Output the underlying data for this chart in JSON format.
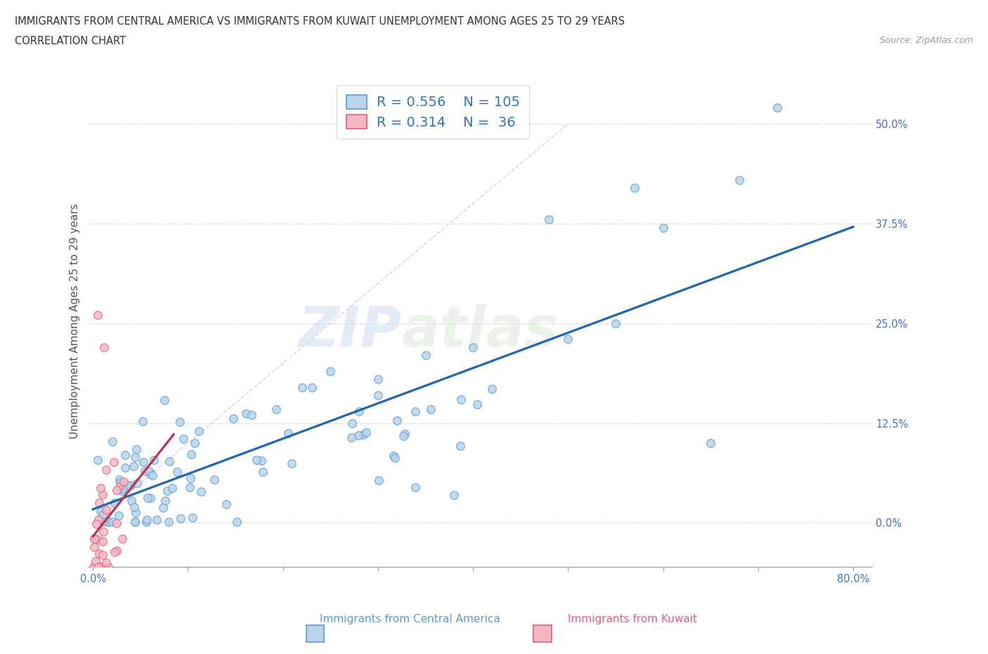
{
  "title_line1": "IMMIGRANTS FROM CENTRAL AMERICA VS IMMIGRANTS FROM KUWAIT UNEMPLOYMENT AMONG AGES 25 TO 29 YEARS",
  "title_line2": "CORRELATION CHART",
  "source_text": "Source: ZipAtlas.com",
  "ylabel": "Unemployment Among Ages 25 to 29 years",
  "xlabel_blue": "Immigrants from Central America",
  "xlabel_pink": "Immigrants from Kuwait",
  "watermark_zip": "ZIP",
  "watermark_atlas": "atlas",
  "legend_blue_R": "0.556",
  "legend_blue_N": "105",
  "legend_pink_R": "0.314",
  "legend_pink_N": " 36",
  "blue_face": "#b8d4ea",
  "blue_edge": "#5b9bd5",
  "blue_line": "#1f65b0",
  "pink_face": "#f4b8c5",
  "pink_edge": "#e0607a",
  "pink_line": "#c03050",
  "ref_line_color": "#c8c8c8",
  "legend_text_color": "#3373c4",
  "title_color": "#333333",
  "source_color": "#999999",
  "tick_color": "#4472c4",
  "ylabel_color": "#555555",
  "xlim": [
    -0.005,
    0.82
  ],
  "ylim": [
    -0.055,
    0.56
  ],
  "xtick_vals": [
    0.0,
    0.1,
    0.2,
    0.3,
    0.4,
    0.5,
    0.6,
    0.7,
    0.8
  ],
  "ytick_vals": [
    0.0,
    0.125,
    0.25,
    0.375,
    0.5
  ],
  "xtick_labels": [
    "0.0%",
    "",
    "",
    "",
    "",
    "",
    "",
    "",
    "80.0%"
  ],
  "ytick_labels": [
    "0.0%",
    "12.5%",
    "25.0%",
    "37.5%",
    "50.0%"
  ],
  "seed_blue": 123,
  "seed_pink": 77,
  "n_blue": 105,
  "n_pink": 36
}
